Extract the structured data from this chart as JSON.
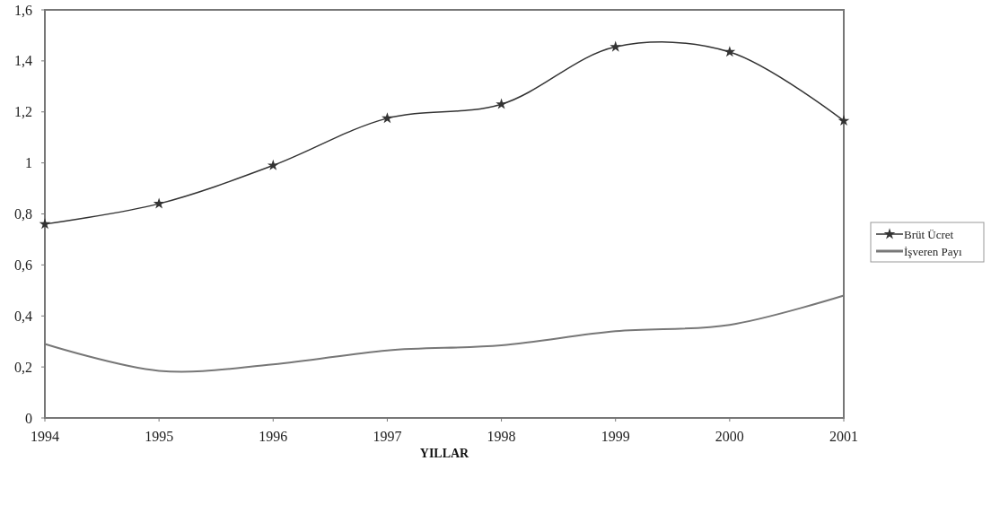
{
  "chart_data": {
    "type": "line",
    "xlabel": "YILLAR",
    "x": [
      1994,
      1995,
      1996,
      1997,
      1998,
      1999,
      2000,
      2001
    ],
    "xlim": [
      1994,
      2001
    ],
    "xticks": [
      1994,
      1995,
      1996,
      1997,
      1998,
      1999,
      2000,
      2001
    ],
    "ylim": [
      0,
      1.6
    ],
    "yticks": [
      {
        "value": 0,
        "label": "0"
      },
      {
        "value": 0.2,
        "label": "0,2"
      },
      {
        "value": 0.4,
        "label": "0,4"
      },
      {
        "value": 0.6,
        "label": "0,6"
      },
      {
        "value": 0.8,
        "label": "0,8"
      },
      {
        "value": 1,
        "label": "1"
      },
      {
        "value": 1.2,
        "label": "1,2"
      },
      {
        "value": 1.4,
        "label": "1,4"
      },
      {
        "value": 1.6,
        "label": "1,6"
      }
    ],
    "series": [
      {
        "name": "Brüt Ücret",
        "color": "#333333",
        "marker": "star",
        "values": [
          0.76,
          0.84,
          0.99,
          1.175,
          1.23,
          1.455,
          1.435,
          1.165
        ]
      },
      {
        "name": "İşveren Payı",
        "color": "#777777",
        "marker": "none",
        "values": [
          0.29,
          0.185,
          0.21,
          0.265,
          0.285,
          0.34,
          0.365,
          0.48
        ]
      }
    ],
    "legend": "right",
    "grid": false,
    "line_style": "solid"
  }
}
